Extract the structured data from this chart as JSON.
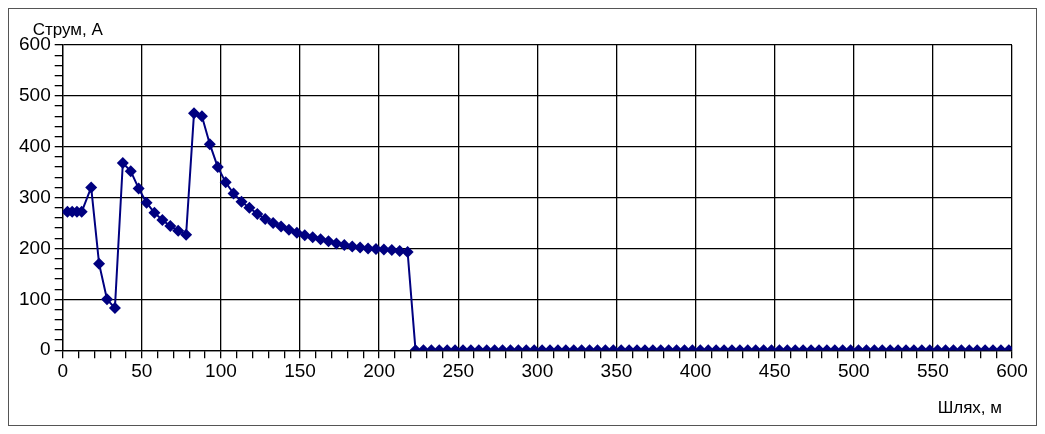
{
  "chart_data": {
    "type": "line",
    "xlabel": "Шлях, м",
    "ylabel": "Струм, А",
    "xlim": [
      0,
      600
    ],
    "ylim": [
      0,
      600
    ],
    "xticks": [
      0,
      {
        "value": 10,
        "label": null
      },
      {
        "value": 20,
        "label": null
      },
      {
        "value": 30,
        "label": null
      },
      {
        "value": 40,
        "label": null
      },
      50,
      {
        "value": 60,
        "label": null
      },
      {
        "value": 70,
        "label": null
      },
      {
        "value": 80,
        "label": null
      },
      {
        "value": 90,
        "label": null
      },
      100,
      {
        "value": 110,
        "label": null
      },
      {
        "value": 120,
        "label": null
      },
      {
        "value": 130,
        "label": null
      },
      {
        "value": 140,
        "label": null
      },
      150,
      {
        "value": 160,
        "label": null
      },
      {
        "value": 170,
        "label": null
      },
      {
        "value": 180,
        "label": null
      },
      {
        "value": 190,
        "label": null
      },
      200,
      {
        "value": 210,
        "label": null
      },
      {
        "value": 220,
        "label": null
      },
      {
        "value": 230,
        "label": null
      },
      {
        "value": 240,
        "label": null
      },
      250,
      {
        "value": 260,
        "label": null
      },
      {
        "value": 270,
        "label": null
      },
      {
        "value": 280,
        "label": null
      },
      {
        "value": 290,
        "label": null
      },
      300,
      {
        "value": 310,
        "label": null
      },
      {
        "value": 320,
        "label": null
      },
      {
        "value": 330,
        "label": null
      },
      {
        "value": 340,
        "label": null
      },
      350,
      {
        "value": 360,
        "label": null
      },
      {
        "value": 370,
        "label": null
      },
      {
        "value": 380,
        "label": null
      },
      {
        "value": 390,
        "label": null
      },
      400,
      {
        "value": 410,
        "label": null
      },
      {
        "value": 420,
        "label": null
      },
      {
        "value": 430,
        "label": null
      },
      {
        "value": 440,
        "label": null
      },
      450,
      {
        "value": 460,
        "label": null
      },
      {
        "value": 470,
        "label": null
      },
      {
        "value": 480,
        "label": null
      },
      {
        "value": 490,
        "label": null
      },
      500,
      {
        "value": 510,
        "label": null
      },
      {
        "value": 520,
        "label": null
      },
      {
        "value": 530,
        "label": null
      },
      {
        "value": 540,
        "label": null
      },
      550,
      {
        "value": 560,
        "label": null
      },
      {
        "value": 570,
        "label": null
      },
      {
        "value": 580,
        "label": null
      },
      {
        "value": 590,
        "label": null
      },
      600
    ],
    "yticks": [
      0,
      {
        "value": 20,
        "label": null
      },
      {
        "value": 40,
        "label": null
      },
      {
        "value": 60,
        "label": null
      },
      {
        "value": 80,
        "label": null
      },
      100,
      {
        "value": 120,
        "label": null
      },
      {
        "value": 140,
        "label": null
      },
      {
        "value": 160,
        "label": null
      },
      {
        "value": 180,
        "label": null
      },
      200,
      {
        "value": 220,
        "label": null
      },
      {
        "value": 240,
        "label": null
      },
      {
        "value": 260,
        "label": null
      },
      {
        "value": 280,
        "label": null
      },
      300,
      {
        "value": 320,
        "label": null
      },
      {
        "value": 340,
        "label": null
      },
      {
        "value": 360,
        "label": null
      },
      {
        "value": 380,
        "label": null
      },
      400,
      {
        "value": 420,
        "label": null
      },
      {
        "value": 440,
        "label": null
      },
      {
        "value": 460,
        "label": null
      },
      {
        "value": 480,
        "label": null
      },
      500,
      {
        "value": 520,
        "label": null
      },
      {
        "value": 540,
        "label": null
      },
      {
        "value": 560,
        "label": null
      },
      {
        "value": 580,
        "label": null
      },
      600
    ],
    "grid": true,
    "legend": false,
    "marker": "diamond",
    "line_style": "solid",
    "series": [
      {
        "color": "#000080",
        "x": [
          3,
          6,
          9,
          12,
          18,
          23,
          28,
          33,
          38,
          43,
          48,
          53,
          58,
          63,
          68,
          73,
          78,
          83,
          88,
          93,
          98,
          103,
          108,
          113,
          118,
          123,
          128,
          133,
          138,
          143,
          148,
          153,
          158,
          163,
          168,
          173,
          178,
          183,
          188,
          193,
          198,
          203,
          208,
          213,
          218,
          223,
          228,
          233,
          238,
          243,
          248,
          253,
          258,
          263,
          268,
          273,
          278,
          283,
          288,
          293,
          298,
          303,
          308,
          313,
          318,
          323,
          328,
          333,
          338,
          343,
          348,
          353,
          358,
          363,
          368,
          373,
          378,
          383,
          388,
          393,
          398,
          403,
          408,
          413,
          418,
          423,
          428,
          433,
          438,
          443,
          448,
          453,
          458,
          463,
          468,
          473,
          478,
          483,
          488,
          493,
          498,
          503,
          508,
          513,
          518,
          523,
          528,
          533,
          538,
          543,
          548,
          553,
          558,
          563,
          568,
          573,
          578,
          583,
          588,
          593,
          598
        ],
        "values": [
          272,
          272,
          272,
          272,
          320,
          170,
          100,
          83,
          368,
          352,
          318,
          290,
          270,
          256,
          244,
          235,
          227,
          466,
          460,
          405,
          360,
          330,
          308,
          292,
          280,
          268,
          258,
          250,
          243,
          237,
          231,
          226,
          222,
          218,
          214,
          210,
          207,
          204,
          202,
          200,
          199,
          198,
          197,
          195,
          193,
          0,
          0,
          0,
          0,
          0,
          0,
          0,
          0,
          0,
          0,
          0,
          0,
          0,
          0,
          0,
          0,
          0,
          0,
          0,
          0,
          0,
          0,
          0,
          0,
          0,
          0,
          0,
          0,
          0,
          0,
          0,
          0,
          0,
          0,
          0,
          0,
          0,
          0,
          0,
          0,
          0,
          0,
          0,
          0,
          0,
          0,
          0,
          0,
          0,
          0,
          0,
          0,
          0,
          0,
          0,
          0,
          0,
          0,
          0,
          0,
          0,
          0,
          0,
          0,
          0,
          0,
          0,
          0,
          0,
          0,
          0,
          0,
          0,
          0,
          0,
          0
        ]
      }
    ]
  }
}
